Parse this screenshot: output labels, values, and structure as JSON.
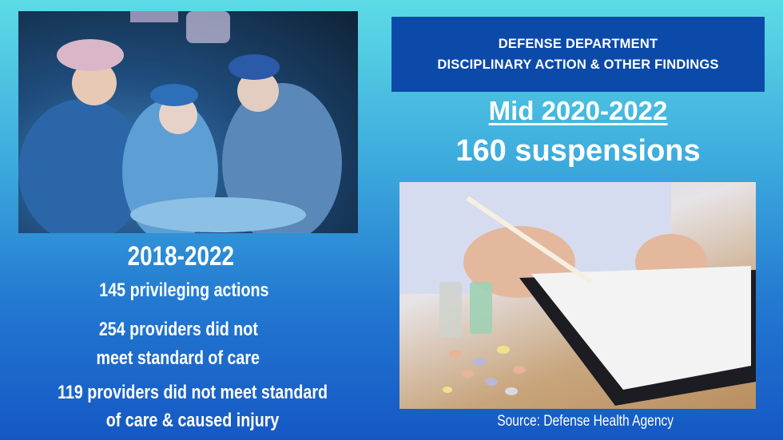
{
  "banner": {
    "line1": "DEFENSE DEPARTMENT",
    "line2": "DISCIPLINARY ACTION & OTHER FINDINGS"
  },
  "right": {
    "period": "Mid 2020-2022",
    "headline": "160 suspensions",
    "source": "Source: Defense Health Agency"
  },
  "left": {
    "period": "2018-2022",
    "stat1": "145 privileging actions",
    "stat2_line1": "254 providers did not",
    "stat2_line2": "meet standard of care",
    "stat3_line1": "119 providers did not meet standard",
    "stat3_line2": "of care & caused injury"
  },
  "colors": {
    "banner": "#0b4aa9",
    "text": "#ffffff"
  }
}
